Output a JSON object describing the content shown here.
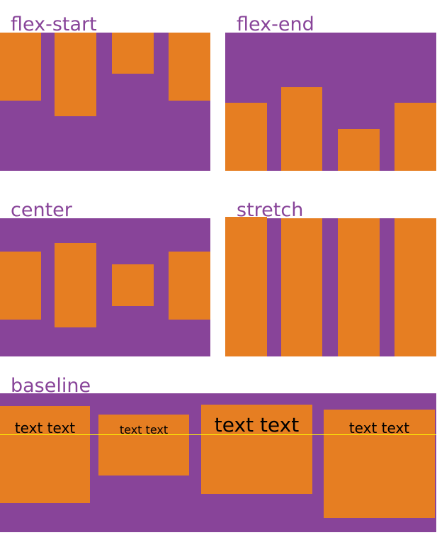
{
  "panels": [
    {
      "label": "flex-start"
    },
    {
      "label": "flex-end"
    },
    {
      "label": "center"
    },
    {
      "label": "stretch"
    }
  ],
  "baseline": {
    "label": "baseline",
    "items": [
      "text text",
      "text text",
      "text text",
      "text text"
    ]
  }
}
